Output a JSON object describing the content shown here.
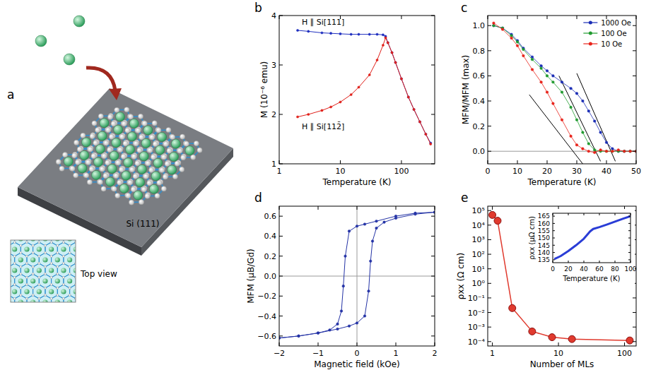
{
  "diagram": {
    "panel_label": "a",
    "substrate_label": "Si (111)",
    "inset_label": "Top view"
  },
  "chart_data": [
    {
      "panel_label": "b",
      "type": "line",
      "log": "x",
      "marker": "circle",
      "legend": "inline",
      "x_label": "Temperature (K)",
      "y_label": "M (10⁻⁶ emu)",
      "xlim": [
        1,
        350
      ],
      "xticks": [
        1,
        10,
        100
      ],
      "ylim": [
        1,
        4
      ],
      "yticks": [
        1,
        2,
        3,
        4
      ],
      "x": [
        2,
        3,
        5,
        7,
        10,
        15,
        20,
        30,
        40,
        50,
        55,
        60,
        70,
        80,
        100,
        130,
        160,
        200,
        250,
        300
      ],
      "series": [
        {
          "name": "H ∥ Si[111]",
          "color": "#1f2fbf",
          "values": [
            3.7,
            3.68,
            3.65,
            3.64,
            3.63,
            3.62,
            3.62,
            3.62,
            3.62,
            3.61,
            3.58,
            3.45,
            3.25,
            3.05,
            2.72,
            2.35,
            2.1,
            1.85,
            1.6,
            1.42
          ]
        },
        {
          "name": "H ∥ Si[112̄]",
          "color": "#e0201a",
          "values": [
            1.95,
            2.0,
            2.08,
            2.15,
            2.25,
            2.4,
            2.55,
            2.8,
            3.1,
            3.4,
            3.55,
            3.45,
            3.25,
            3.05,
            2.72,
            2.35,
            2.1,
            1.85,
            1.6,
            1.4
          ]
        }
      ]
    },
    {
      "panel_label": "c",
      "type": "line",
      "marker": "circle",
      "legend": "upper right",
      "x_label": "Temperature (K)",
      "y_label": "MFM/MFM (max)",
      "xlim": [
        0,
        50
      ],
      "xticks": [
        0,
        10,
        20,
        30,
        40,
        50
      ],
      "ylim": [
        -0.1,
        1.08
      ],
      "yticks": [
        {
          "value": 0,
          "label": "0.0"
        },
        0.2,
        0.4,
        0.6,
        0.8,
        {
          "value": 1,
          "label": "1.0"
        }
      ],
      "x": [
        2,
        5,
        8,
        10,
        12,
        15,
        18,
        20,
        22,
        25,
        28,
        30,
        32,
        34,
        36,
        38,
        40,
        42,
        44,
        46,
        48,
        50
      ],
      "series": [
        {
          "name": "1000 Oe",
          "color": "#1a2db5",
          "values": [
            1.0,
            0.98,
            0.93,
            0.88,
            0.82,
            0.75,
            0.68,
            0.64,
            0.6,
            0.55,
            0.5,
            0.46,
            0.4,
            0.32,
            0.24,
            0.15,
            0.07,
            0.02,
            0.0,
            0.0,
            0.0,
            0.0
          ]
        },
        {
          "name": "100 Oe",
          "color": "#1f9a2e",
          "values": [
            1.0,
            0.98,
            0.92,
            0.87,
            0.81,
            0.73,
            0.66,
            0.6,
            0.55,
            0.47,
            0.35,
            0.25,
            0.15,
            0.06,
            0.01,
            0.0,
            0.0,
            0.0,
            0.0,
            0.0,
            0.0,
            0.0
          ]
        },
        {
          "name": "10 Oe",
          "color": "#e8231a",
          "values": [
            1.02,
            0.97,
            0.9,
            0.84,
            0.76,
            0.65,
            0.55,
            0.47,
            0.38,
            0.25,
            0.12,
            0.05,
            0.02,
            0.0,
            -0.01,
            0.01,
            0.0,
            0.0,
            0.01,
            0.0,
            0.0,
            0.0
          ]
        }
      ],
      "fit_lines": [
        {
          "x": [
            14,
            32
          ],
          "values": [
            0.45,
            -0.1
          ]
        },
        {
          "x": [
            24,
            38
          ],
          "values": [
            0.6,
            -0.08
          ]
        },
        {
          "x": [
            30,
            43
          ],
          "values": [
            0.62,
            -0.08
          ]
        }
      ]
    },
    {
      "panel_label": "d",
      "type": "line",
      "marker": "circle",
      "x_label": "Magnetic field (kOe)",
      "y_label": "MFM (μB/Gd)",
      "xlim": [
        -2,
        2
      ],
      "xticks": [
        {
          "value": -2,
          "label": "−2"
        },
        {
          "value": -1,
          "label": "−1"
        },
        0,
        1,
        2
      ],
      "ylim": [
        -0.7,
        0.7
      ],
      "yticks": [
        {
          "value": -0.6,
          "label": "−0.6"
        },
        {
          "value": -0.4,
          "label": "−0.4"
        },
        {
          "value": -0.2,
          "label": "−0.2"
        },
        {
          "value": 0,
          "label": "0.0"
        },
        0.2,
        0.4,
        0.6
      ],
      "series": [
        {
          "color": "#2433a6",
          "x": [
            2,
            1.5,
            1,
            0.5,
            0.2,
            0,
            -0.2,
            -0.3,
            -0.35,
            -0.4,
            -0.5,
            -0.7,
            -1,
            -1.5,
            -2
          ],
          "values": [
            0.64,
            0.63,
            0.6,
            0.55,
            0.52,
            0.5,
            0.45,
            0.2,
            -0.1,
            -0.35,
            -0.48,
            -0.54,
            -0.57,
            -0.6,
            -0.62
          ]
        },
        {
          "color": "#2433a6",
          "x": [
            -2,
            -1.5,
            -1,
            -0.5,
            -0.2,
            0,
            0.2,
            0.3,
            0.35,
            0.4,
            0.5,
            0.7,
            1,
            1.5,
            2
          ],
          "values": [
            -0.62,
            -0.6,
            -0.57,
            -0.53,
            -0.5,
            -0.47,
            -0.4,
            -0.15,
            0.15,
            0.35,
            0.48,
            0.54,
            0.58,
            0.62,
            0.64
          ]
        }
      ]
    },
    {
      "panel_label": "e",
      "type": "line",
      "log": true,
      "marker": "circle",
      "x_label": "Number of MLs",
      "y_label": "ρxx (Ω cm)",
      "xlim": [
        0.85,
        150
      ],
      "xticks": [
        1,
        10,
        100
      ],
      "ylim": [
        5e-05,
        200000
      ],
      "yticks": [
        {
          "value": 0.0001,
          "label": "10⁻⁴"
        },
        {
          "value": 0.001,
          "label": "10⁻³"
        },
        {
          "value": 0.01,
          "label": "10⁻²"
        },
        {
          "value": 0.1,
          "label": "10⁻¹"
        },
        {
          "value": 1,
          "label": "10⁰"
        },
        {
          "value": 10,
          "label": "10¹"
        },
        {
          "value": 100,
          "label": "10²"
        },
        {
          "value": 1000,
          "label": "10³"
        },
        {
          "value": 10000,
          "label": "10⁴"
        },
        {
          "value": 100000,
          "label": "10⁵"
        }
      ],
      "x": [
        1,
        1.2,
        2,
        4,
        8,
        16,
        120
      ],
      "series": [
        {
          "color": "#e03a2e",
          "values": [
            50000,
            20000,
            0.02,
            0.0005,
            0.0002,
            0.00015,
            0.00012
          ]
        }
      ],
      "inset": {
        "type": "line",
        "marker": "none",
        "x_label": "Temperature (K)",
        "y_label": "ρxx (μΩ cm)",
        "xlim": [
          0,
          100
        ],
        "xticks": [
          0,
          20,
          40,
          60,
          80,
          100
        ],
        "ylim": [
          133,
          167
        ],
        "yticks": [
          135,
          140,
          145,
          150,
          155,
          160,
          165
        ],
        "x": [
          2,
          10,
          20,
          30,
          40,
          48,
          52,
          60,
          70,
          80,
          90,
          100
        ],
        "series": [
          {
            "color": "#2a3dd6",
            "values": [
              135.5,
              137.5,
              141,
              145,
              149.5,
              154.5,
              156.2,
              157.5,
              159.3,
              161.2,
              163.2,
              165
            ]
          }
        ]
      }
    }
  ]
}
